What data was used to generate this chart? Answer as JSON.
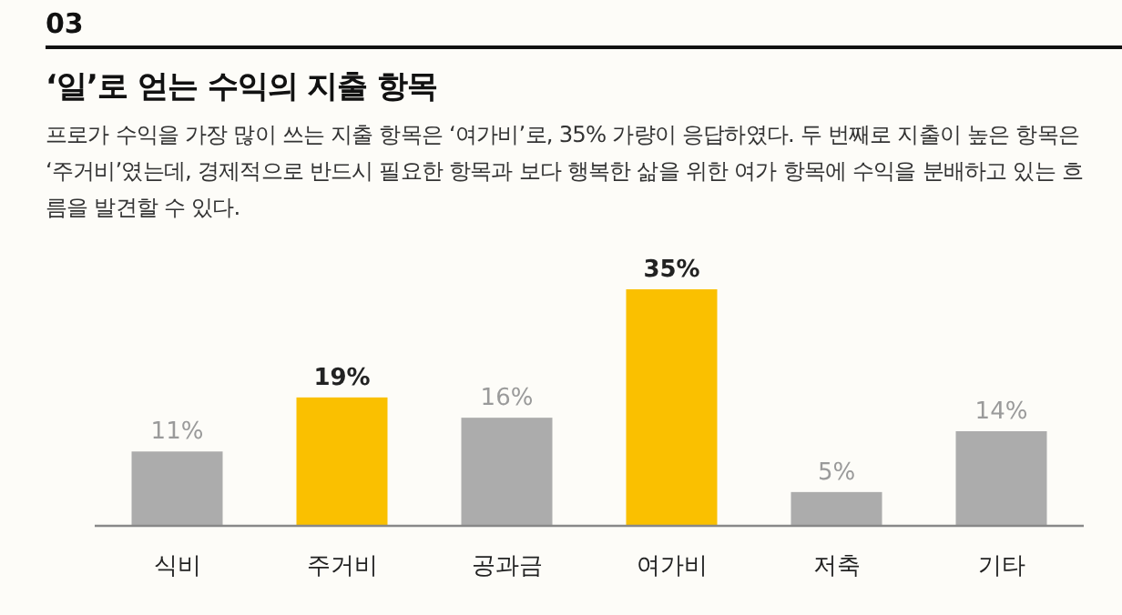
{
  "chart_data": {
    "type": "bar",
    "title": "‘일’로 얻는 수익의 지출 항목",
    "subtitle": "프로가 수익을 가장 많이 쓰는 지출 항목은 ‘여가비’로, 35% 가량이 응답하였다. 두 번째로 지출이 높은 항목은 ‘주거비’였는데, 경제적으로 반드시 필요한 항목과 보다 행복한 삶을 위한 여가 항목에 수익을 분배하고 있는 흐름을 발견할 수 있다.",
    "annotations": [
      "03"
    ],
    "categories": [
      "식비",
      "주거비",
      "공과금",
      "여가비",
      "저축",
      "기타"
    ],
    "values": [
      11,
      19,
      16,
      35,
      5,
      14
    ],
    "colors": [
      "#acacac",
      "#fac000",
      "#acacac",
      "#fac000",
      "#acacac",
      "#acacac"
    ],
    "value_labels": [
      "11%",
      "19%",
      "16%",
      "35%",
      "5%",
      "14%"
    ]
  }
}
